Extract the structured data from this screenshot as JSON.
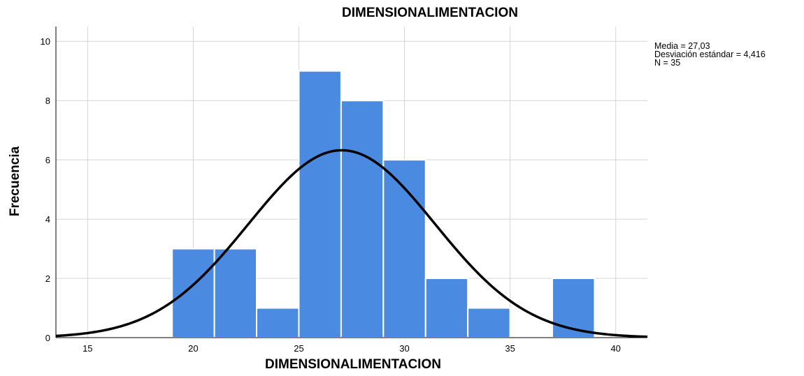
{
  "chart_data": {
    "type": "bar",
    "title": "DIMENSIONALIMENTACION",
    "xlabel": "DIMENSIONALIMENTACION",
    "ylabel": "Frecuencia",
    "xlim": [
      13.5,
      41.5
    ],
    "ylim": [
      0,
      10.5
    ],
    "xticks": [
      15,
      20,
      25,
      30,
      35,
      40
    ],
    "yticks": [
      0,
      2,
      4,
      6,
      8,
      10
    ],
    "bin_width": 2,
    "bins": [
      {
        "start": 19,
        "end": 21,
        "count": 3
      },
      {
        "start": 21,
        "end": 23,
        "count": 3
      },
      {
        "start": 23,
        "end": 25,
        "count": 1
      },
      {
        "start": 25,
        "end": 27,
        "count": 9
      },
      {
        "start": 27,
        "end": 29,
        "count": 8
      },
      {
        "start": 29,
        "end": 31,
        "count": 6
      },
      {
        "start": 31,
        "end": 33,
        "count": 2
      },
      {
        "start": 33,
        "end": 35,
        "count": 1
      },
      {
        "start": 35,
        "end": 37,
        "count": 0
      },
      {
        "start": 37,
        "end": 39,
        "count": 2
      }
    ],
    "normal_curve": {
      "mean": 27.03,
      "sd": 4.416,
      "n": 35
    },
    "grid": true,
    "bar_color": "#4a8ae0",
    "curve_color": "#000000",
    "stats_text": [
      "Media = 27,03",
      "Desviación estándar = 4,416",
      "N = 35"
    ]
  }
}
